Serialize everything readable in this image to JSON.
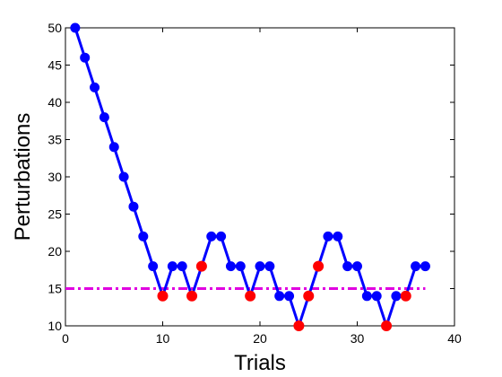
{
  "chart_data": {
    "type": "line",
    "title": "",
    "xlabel": "Trials",
    "ylabel": "Perturbations",
    "xlim": [
      0,
      40
    ],
    "ylim": [
      10,
      50
    ],
    "xticks": [
      0,
      10,
      20,
      30,
      40
    ],
    "yticks": [
      10,
      15,
      20,
      25,
      30,
      35,
      40,
      45,
      50
    ],
    "grid": false,
    "legend": "none",
    "series": [
      {
        "color": "#0000ff",
        "marker": "circle",
        "x": [
          1,
          2,
          3,
          4,
          5,
          6,
          7,
          8,
          9,
          10,
          11,
          12,
          13,
          14,
          15,
          16,
          17,
          18,
          19,
          20,
          21,
          22,
          23,
          24,
          25,
          26,
          27,
          28,
          29,
          30,
          31,
          32,
          33,
          34,
          35,
          36,
          37
        ],
        "y": [
          50,
          46,
          42,
          38,
          34,
          30,
          26,
          22,
          18,
          14,
          18,
          18,
          14,
          18,
          22,
          22,
          18,
          18,
          14,
          18,
          18,
          14,
          14,
          10,
          14,
          18,
          22,
          22,
          18,
          18,
          14,
          14,
          10,
          14,
          14,
          18,
          18
        ]
      }
    ],
    "highlighted_points": {
      "color": "#ff0000",
      "x": [
        10,
        13,
        14,
        19,
        24,
        25,
        26,
        33,
        35
      ],
      "y": [
        14,
        14,
        18,
        14,
        10,
        14,
        18,
        10,
        14
      ]
    },
    "reference_line": {
      "color": "#e000e0",
      "style": "dash-dot",
      "y": 15,
      "x_start": 0,
      "x_end": 37
    }
  }
}
